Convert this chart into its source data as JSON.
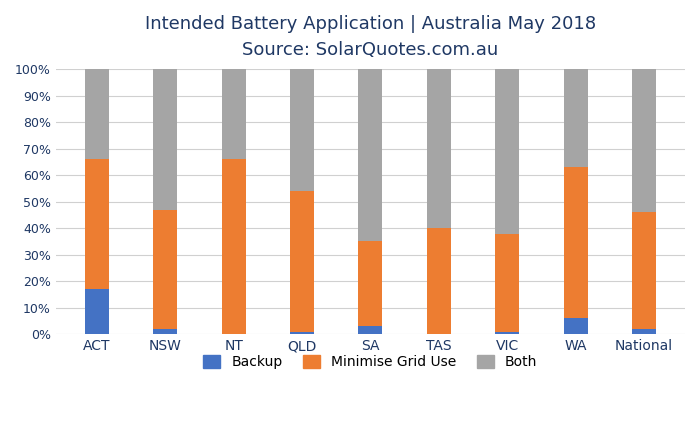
{
  "categories": [
    "ACT",
    "NSW",
    "NT",
    "QLD",
    "SA",
    "TAS",
    "VIC",
    "WA",
    "National"
  ],
  "backup": [
    17,
    2,
    0,
    1,
    3,
    0,
    1,
    6,
    2
  ],
  "minimise_grid_use": [
    49,
    45,
    66,
    53,
    32,
    40,
    37,
    57,
    44
  ],
  "both": [
    34,
    53,
    34,
    46,
    65,
    60,
    62,
    37,
    54
  ],
  "backup_color": "#4472c4",
  "minimise_color": "#ed7d31",
  "both_color": "#a5a5a5",
  "title_line1": "Intended Battery Application | Australia May 2018",
  "title_line2": "Source: SolarQuotes.com.au",
  "ylabel_ticks": [
    0,
    10,
    20,
    30,
    40,
    50,
    60,
    70,
    80,
    90,
    100
  ],
  "legend_labels": [
    "Backup",
    "Minimise Grid Use",
    "Both"
  ],
  "background_color": "#ffffff",
  "grid_color": "#d0d0d0",
  "bar_width": 0.35,
  "title1_fontsize": 13,
  "title2_fontsize": 11,
  "tick_fontsize": 9,
  "xlabel_fontsize": 10,
  "legend_fontsize": 10,
  "text_color": "#1f3864"
}
